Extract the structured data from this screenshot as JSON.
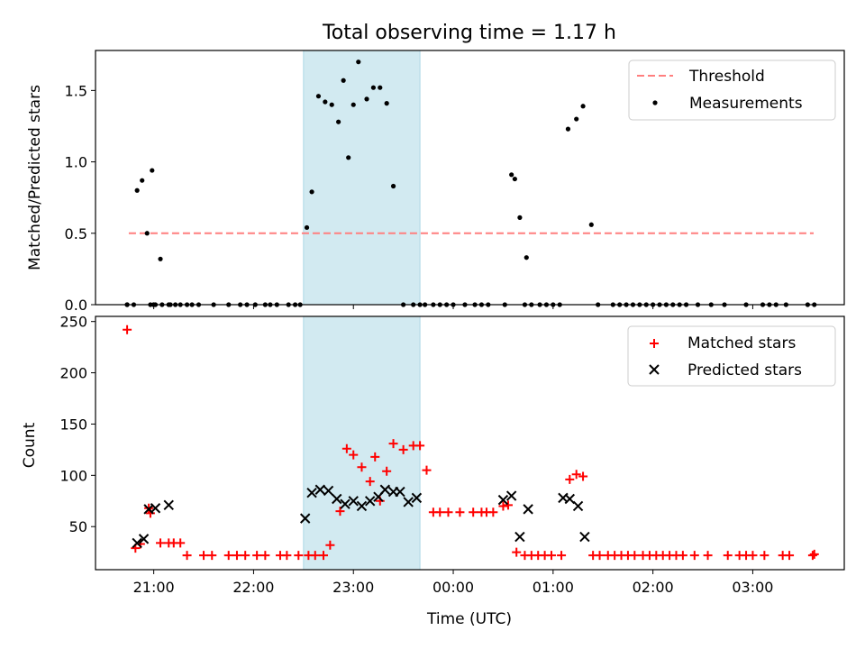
{
  "figure": {
    "title": "Total observing time = 1.17 h",
    "xlabel": "Time (UTC)"
  },
  "colors": {
    "shade": "#add8e6",
    "threshold": "#ff7f7f",
    "measurement": "#000000",
    "matched": "#ff0000",
    "predicted": "#000000"
  },
  "chart_data": [
    {
      "type": "scatter",
      "ylabel": "Matched/Predicted stars",
      "xlim": [
        "20:25",
        "03:55"
      ],
      "ylim": [
        0,
        1.78
      ],
      "yticks": [
        0.0,
        0.5,
        1.0,
        1.5
      ],
      "ytick_labels": [
        "0.0",
        "0.5",
        "1.0",
        "1.5"
      ],
      "shaded_interval": [
        "22:30",
        "23:40"
      ],
      "threshold": {
        "name": "Threshold",
        "value": 0.5,
        "x": [
          "20:45",
          "03:55"
        ]
      },
      "legend": {
        "position": "top-right",
        "entries": [
          "Threshold",
          "Measurements"
        ]
      },
      "series": [
        {
          "name": "Measurements",
          "x": [
            "20:44",
            "20:50",
            "20:53",
            "20:59",
            "20:56",
            "20:48",
            "21:04",
            "21:09",
            "20:58",
            "21:00",
            "21:01",
            "21:05",
            "21:00",
            "22:32",
            "22:35",
            "22:39",
            "22:43",
            "22:47",
            "22:51",
            "22:54",
            "22:57",
            "23:00",
            "23:03",
            "23:08",
            "23:12",
            "23:16",
            "23:20",
            "23:24",
            "23:30",
            "23:36",
            "23:40",
            "00:35",
            "00:37",
            "00:40",
            "00:44",
            "00:47",
            "01:09",
            "01:14",
            "01:18",
            "01:23",
            "01:27"
          ],
          "y": [
            0,
            0.8,
            0.87,
            0.94,
            0.5,
            0,
            0.32,
            0,
            0,
            0,
            0,
            0,
            0,
            0.54,
            0.79,
            1.46,
            1.42,
            1.4,
            1.28,
            1.57,
            1.03,
            1.4,
            1.7,
            1.44,
            1.52,
            1.52,
            1.41,
            0.83,
            0,
            0,
            0,
            0.91,
            0.88,
            0.61,
            0.33,
            0,
            1.23,
            1.3,
            1.39,
            0.56,
            0
          ]
        },
        {
          "name": "Measurements (zero)",
          "x": [
            "20:44",
            "21:10",
            "21:13",
            "21:16",
            "21:20",
            "21:23",
            "21:27",
            "21:36",
            "21:45",
            "21:52",
            "21:56",
            "22:01",
            "22:07",
            "22:10",
            "22:14",
            "22:21",
            "22:25",
            "22:28",
            "23:43",
            "23:48",
            "23:52",
            "23:56",
            "00:00",
            "00:07",
            "00:13",
            "00:17",
            "00:21",
            "00:31",
            "00:43",
            "00:52",
            "00:56",
            "01:00",
            "01:04",
            "01:36",
            "01:40",
            "01:44",
            "01:48",
            "01:52",
            "01:56",
            "02:00",
            "02:04",
            "02:08",
            "02:12",
            "02:16",
            "02:20",
            "02:27",
            "02:35",
            "02:43",
            "02:56",
            "03:06",
            "03:10",
            "03:14",
            "03:20",
            "03:33",
            "03:37"
          ],
          "y": [
            0,
            0,
            0,
            0,
            0,
            0,
            0,
            0,
            0,
            0,
            0,
            0,
            0,
            0,
            0,
            0,
            0,
            0,
            0,
            0,
            0,
            0,
            0,
            0,
            0,
            0,
            0,
            0,
            0,
            0,
            0,
            0,
            0,
            0,
            0,
            0,
            0,
            0,
            0,
            0,
            0,
            0,
            0,
            0,
            0,
            0,
            0,
            0,
            0,
            0,
            0,
            0,
            0,
            0,
            0
          ]
        }
      ]
    },
    {
      "type": "scatter",
      "ylabel": "Count",
      "xlim": [
        "20:25",
        "03:55"
      ],
      "ylim": [
        8,
        255
      ],
      "yticks": [
        50,
        100,
        150,
        200,
        250
      ],
      "ytick_labels": [
        "50",
        "100",
        "150",
        "200",
        "250"
      ],
      "xticks": [
        "21:00",
        "22:00",
        "23:00",
        "00:00",
        "01:00",
        "02:00",
        "03:00"
      ],
      "xtick_labels": [
        "21:00",
        "22:00",
        "23:00",
        "00:00",
        "01:00",
        "02:00",
        "03:00"
      ],
      "shaded_interval": [
        "22:30",
        "23:40"
      ],
      "legend": {
        "position": "top-right",
        "entries": [
          "Matched stars",
          "Predicted stars"
        ]
      },
      "series": [
        {
          "name": "Matched stars",
          "marker": "+",
          "x": [
            "20:44",
            "20:49",
            "20:52",
            "20:58",
            "20:57",
            "21:04",
            "21:09",
            "21:12",
            "21:16",
            "21:20",
            "21:30",
            "21:35",
            "21:45",
            "21:50",
            "21:55",
            "22:02",
            "22:07",
            "22:16",
            "22:20",
            "22:27",
            "22:33",
            "22:37",
            "22:42",
            "22:46",
            "22:52",
            "22:56",
            "23:00",
            "23:05",
            "23:10",
            "23:13",
            "23:16",
            "23:20",
            "23:24",
            "23:30",
            "23:36",
            "23:40",
            "23:44",
            "23:48",
            "23:52",
            "23:57",
            "00:04",
            "00:12",
            "00:17",
            "00:20",
            "00:24",
            "00:30",
            "00:33",
            "00:38",
            "00:43",
            "00:47",
            "00:51",
            "00:55",
            "00:59",
            "01:05",
            "01:10",
            "01:14",
            "01:18",
            "01:24",
            "01:28",
            "01:33",
            "01:37",
            "01:41",
            "01:45",
            "01:49",
            "01:54",
            "01:58",
            "02:02",
            "02:06",
            "02:10",
            "02:14",
            "02:18",
            "02:25",
            "02:33",
            "02:45",
            "02:52",
            "02:56",
            "03:00",
            "03:07",
            "03:18",
            "03:22",
            "03:36",
            "03:37"
          ],
          "y": [
            242,
            29,
            33,
            63,
            68,
            34,
            34,
            34,
            34,
            22,
            22,
            22,
            22,
            22,
            22,
            22,
            22,
            22,
            22,
            22,
            22,
            22,
            22,
            32,
            65,
            126,
            120,
            108,
            94,
            118,
            75,
            104,
            131,
            125,
            129,
            129,
            105,
            64,
            64,
            64,
            64,
            64,
            64,
            64,
            64,
            70,
            71,
            25,
            22,
            22,
            22,
            22,
            22,
            22,
            96,
            101,
            99,
            22,
            22,
            22,
            22,
            22,
            22,
            22,
            22,
            22,
            22,
            22,
            22,
            22,
            22,
            22,
            22,
            22,
            22,
            22,
            22,
            22,
            22,
            22,
            22,
            23
          ]
        },
        {
          "name": "Predicted stars",
          "marker": "x",
          "x": [
            "20:50",
            "20:54",
            "20:57",
            "21:01",
            "21:09",
            "22:31",
            "22:35",
            "22:40",
            "22:45",
            "22:50",
            "22:55",
            "23:00",
            "23:05",
            "23:10",
            "23:15",
            "23:19",
            "23:24",
            "23:28",
            "23:33",
            "23:38",
            "00:30",
            "00:35",
            "00:40",
            "00:45",
            "01:06",
            "01:10",
            "01:15",
            "01:19"
          ],
          "y": [
            34,
            38,
            67,
            68,
            71,
            58,
            83,
            86,
            85,
            77,
            72,
            75,
            70,
            75,
            79,
            86,
            84,
            84,
            74,
            78,
            76,
            80,
            40,
            67,
            78,
            77,
            70,
            40
          ]
        }
      ]
    }
  ]
}
